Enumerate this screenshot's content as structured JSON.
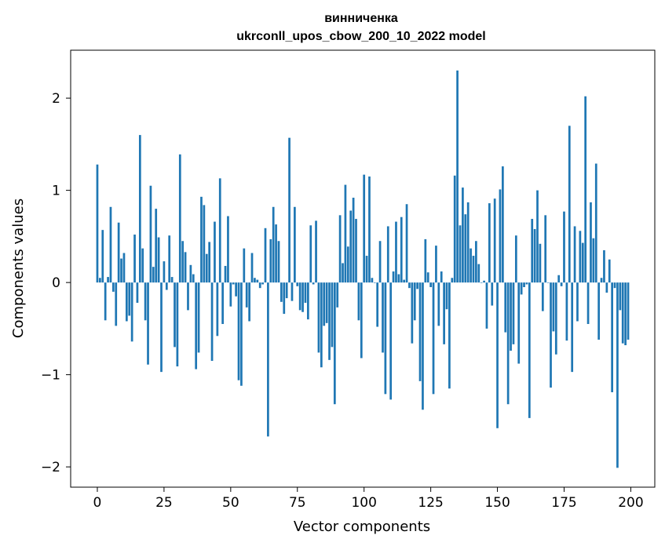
{
  "chart_data": {
    "type": "bar",
    "title_line1": "винниченка",
    "title_line2": "ukrconll_upos_cbow_200_10_2022 model",
    "xlabel": "Vector components",
    "ylabel": "Components values",
    "xlim": [
      -10,
      209
    ],
    "ylim": [
      -2.22,
      2.52
    ],
    "xticks": [
      0,
      25,
      50,
      75,
      100,
      125,
      150,
      175,
      200
    ],
    "yticks": [
      -2,
      -1,
      0,
      1,
      2
    ],
    "ytick_labels": [
      "−2",
      "−1",
      "0",
      "1",
      "2"
    ],
    "grid": false,
    "bar_color": "#1f77b4",
    "values": [
      1.28,
      0.05,
      0.57,
      -0.41,
      0.06,
      0.82,
      -0.1,
      -0.47,
      0.65,
      0.26,
      0.32,
      -0.42,
      -0.36,
      -0.64,
      0.52,
      -0.22,
      1.6,
      0.37,
      -0.41,
      -0.89,
      1.05,
      0.17,
      0.8,
      0.49,
      -0.97,
      0.23,
      -0.08,
      0.51,
      0.06,
      -0.7,
      -0.91,
      1.39,
      0.45,
      0.33,
      -0.3,
      0.19,
      0.09,
      -0.94,
      -0.76,
      0.93,
      0.84,
      0.31,
      0.44,
      -0.85,
      0.66,
      -0.58,
      1.13,
      -0.45,
      0.18,
      0.72,
      -0.26,
      -0.02,
      -0.15,
      -1.06,
      -1.12,
      0.37,
      -0.27,
      -0.42,
      0.32,
      0.05,
      0.03,
      -0.06,
      -0.02,
      0.59,
      -1.67,
      0.47,
      0.82,
      0.63,
      0.45,
      -0.21,
      -0.34,
      -0.17,
      1.57,
      -0.2,
      0.82,
      -0.04,
      -0.3,
      -0.32,
      -0.22,
      -0.4,
      0.62,
      -0.02,
      0.67,
      -0.76,
      -0.92,
      -0.47,
      -0.44,
      -0.84,
      -0.7,
      -1.32,
      -0.27,
      0.73,
      0.21,
      1.06,
      0.39,
      0.78,
      0.92,
      0.69,
      -0.41,
      -0.82,
      1.17,
      0.29,
      1.15,
      0.05,
      0.0,
      -0.48,
      0.45,
      -0.76,
      -1.21,
      0.61,
      -1.27,
      0.12,
      0.66,
      0.09,
      0.71,
      0.03,
      0.85,
      -0.06,
      -0.66,
      -0.41,
      -0.07,
      -1.07,
      -1.38,
      0.47,
      0.11,
      -0.05,
      -1.21,
      0.4,
      -0.47,
      0.12,
      -0.67,
      -0.29,
      -1.15,
      0.05,
      1.16,
      2.3,
      0.62,
      1.03,
      0.74,
      0.87,
      0.37,
      0.29,
      0.45,
      0.2,
      0.0,
      0.02,
      -0.5,
      0.86,
      -0.25,
      0.91,
      -1.58,
      1.01,
      1.26,
      -0.54,
      -1.32,
      -0.74,
      -0.67,
      0.51,
      -0.88,
      -0.13,
      -0.05,
      -0.02,
      -1.47,
      0.69,
      0.58,
      1.0,
      0.42,
      -0.31,
      0.73,
      0.0,
      -1.14,
      -0.53,
      -0.78,
      0.08,
      -0.04,
      0.77,
      -0.63,
      1.7,
      -0.97,
      0.61,
      -0.42,
      0.56,
      0.43,
      2.02,
      -0.45,
      0.87,
      0.48,
      1.29,
      -0.62,
      0.05,
      0.35,
      -0.11,
      0.25,
      -1.19,
      -0.06,
      -2.01,
      -0.3,
      -0.66,
      -0.68,
      -0.62
    ]
  }
}
